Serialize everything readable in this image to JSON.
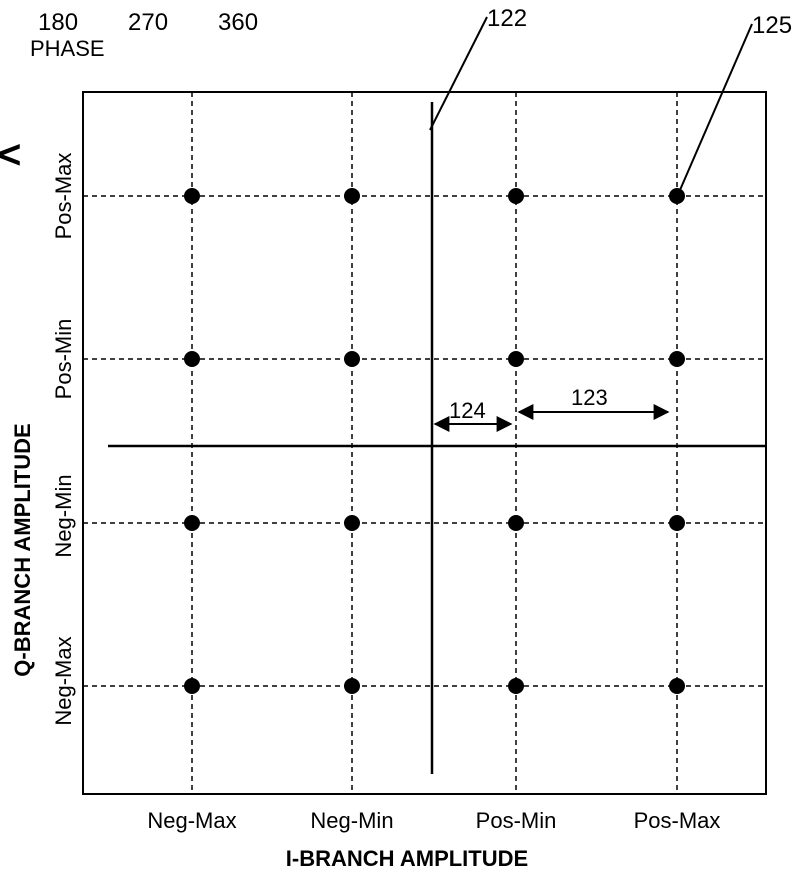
{
  "header": {
    "phase_values": [
      "180",
      "270",
      "360"
    ],
    "phase_label": "PHASE"
  },
  "axes": {
    "x_title": "I-BRANCH AMPLITUDE",
    "y_title": "Q-BRANCH AMPLITUDE",
    "x_ticks": [
      "Neg-Max",
      "Neg-Min",
      "Pos-Min",
      "Pos-Max"
    ],
    "y_ticks": [
      "Pos-Max",
      "Pos-Min",
      "Neg-Min",
      "Neg-Max"
    ]
  },
  "references": {
    "axis_line": "122",
    "min_spacing": "124",
    "step_spacing": "123",
    "point": "125"
  },
  "constellation": {
    "columns": [
      "Neg-Max",
      "Neg-Min",
      "Pos-Min",
      "Pos-Max"
    ],
    "rows": [
      "Pos-Max",
      "Pos-Min",
      "Neg-Min",
      "Neg-Max"
    ]
  },
  "partial_glyph": "<"
}
